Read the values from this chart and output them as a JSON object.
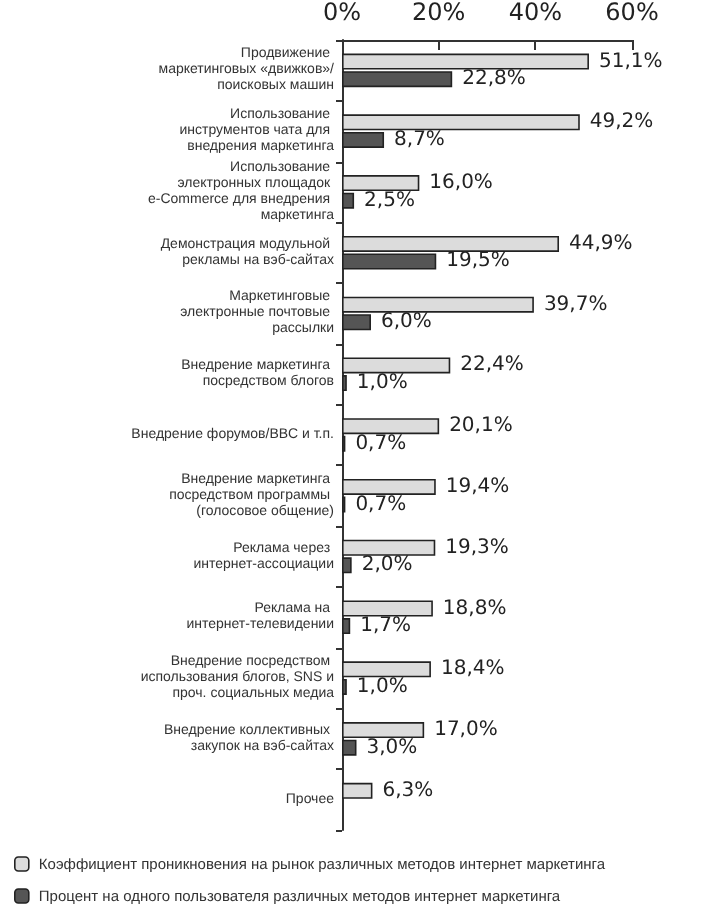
{
  "chart_data": {
    "type": "bar",
    "orientation": "horizontal",
    "categories": [
      "Продвижение маркетинговых «движков»/поисковых машин",
      "Использование инструментов чата для внедрения маркетинга",
      "Использование электронных площадок e-Commerce для внедрения маркетинга",
      "Демонстрация модульной рекламы на вэб-сайтах",
      "Маркетинговые электронные почтовые рассылки",
      "Внедрение маркетинга посредством блогов",
      "Внедрение форумов/BBC и т.п.",
      "Внедрение маркетинга посредством программы (голосовое общение)",
      "Реклама через интернет-ассоциации",
      "Реклама на интернет-телевидении",
      "Внедрение посредством использования блогов, SNS и проч. социальных медиа",
      "Внедрение коллективных закупок на вэб-сайтах",
      "Прочее"
    ],
    "series": [
      {
        "name": "Коэффициент проникновения на рынок различных методов интернет маркетинга",
        "color": "#dcdcdc",
        "values": [
          51.1,
          49.2,
          16.0,
          44.9,
          39.7,
          22.4,
          20.1,
          19.4,
          19.3,
          18.8,
          18.4,
          17.0,
          6.3
        ],
        "value_labels": [
          "51,1%",
          "49,2%",
          "16,0%",
          "44,9%",
          "39,7%",
          "22,4%",
          "20,1%",
          "19,4%",
          "19,3%",
          "18,8%",
          "18,4%",
          "17,0%",
          "6,3%"
        ]
      },
      {
        "name": "Процент на одного пользователя различных методов интернет маркетинга",
        "color": "#555555",
        "values": [
          22.8,
          8.7,
          2.5,
          19.5,
          6.0,
          1.0,
          0.7,
          0.7,
          2.0,
          1.7,
          1.0,
          3.0,
          null
        ],
        "value_labels": [
          "22,8%",
          "8,7%",
          "2,5%",
          "19,5%",
          "6,0%",
          "1,0%",
          "0,7%",
          "0,7%",
          "2,0%",
          "1,7%",
          "1,0%",
          "3,0%",
          null
        ]
      }
    ],
    "xlim": [
      0,
      60
    ],
    "xticks": [
      {
        "value": 0,
        "label": "0%"
      },
      {
        "value": 20,
        "label": "20%"
      },
      {
        "value": 40,
        "label": "40%"
      },
      {
        "value": 60,
        "label": "60%"
      }
    ],
    "grid": false,
    "legend": "bottom"
  }
}
